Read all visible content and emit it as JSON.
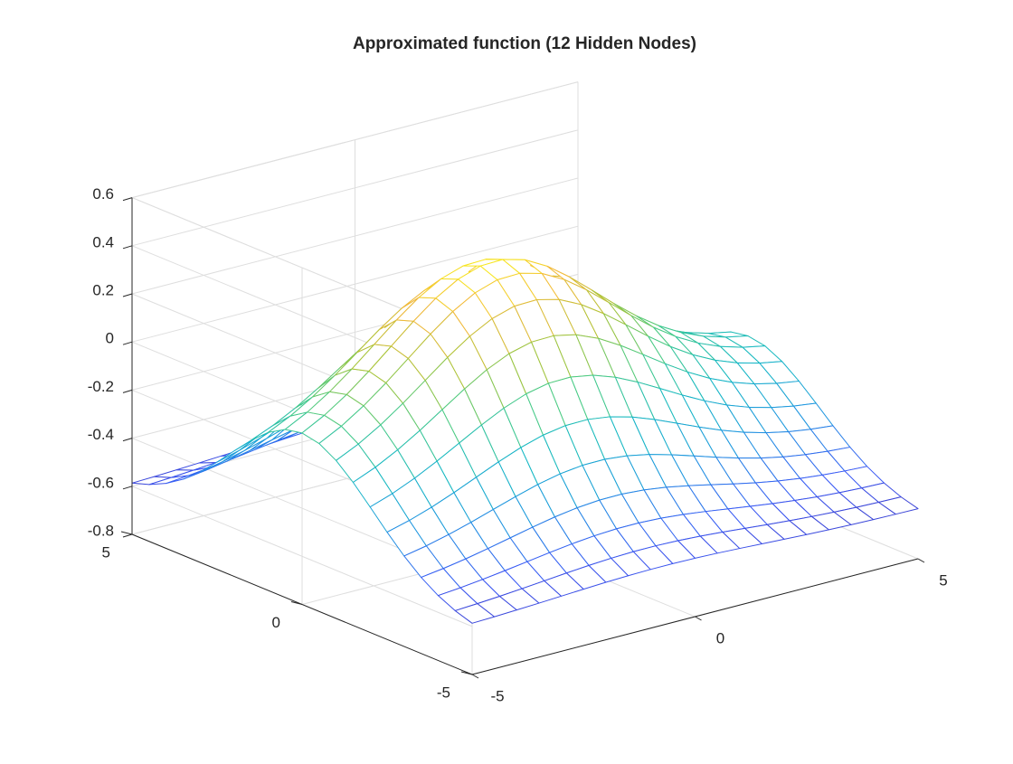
{
  "chart_data": {
    "type": "surface",
    "title": "Approximated function (12 Hidden Nodes)",
    "xlabel": "",
    "ylabel": "",
    "zlabel": "",
    "xlim": [
      -5,
      5
    ],
    "ylim": [
      -5,
      5
    ],
    "zlim": [
      -0.8,
      0.6
    ],
    "x_ticks": [
      -5,
      0,
      5
    ],
    "y_ticks": [
      -5,
      0,
      5
    ],
    "z_ticks": [
      -0.8,
      -0.6,
      -0.4,
      -0.2,
      0,
      0.2,
      0.4,
      0.6
    ],
    "x_tick_labels": [
      "-5",
      "0",
      "5"
    ],
    "y_tick_labels": [
      "-5",
      "0",
      "5"
    ],
    "z_tick_labels": [
      "-0.8",
      "-0.6",
      "-0.4",
      "-0.2",
      "0",
      "0.2",
      "0.4",
      "0.6"
    ],
    "grid": true,
    "colormap": "parula",
    "colormap_colors": [
      "#3e26a8",
      "#3a59f5",
      "#1f96e0",
      "#14b8c4",
      "#48cb86",
      "#a9c437",
      "#f2b83a",
      "#f9fb15"
    ],
    "mesh": {
      "x": [
        -5,
        -4.5,
        -4,
        -3.5,
        -3,
        -2.5,
        -2,
        -1.5,
        -1,
        -0.5,
        0,
        0.5,
        1,
        1.5,
        2,
        2.5,
        3,
        3.5,
        4,
        4.5,
        5
      ],
      "y": [
        -5,
        -4.5,
        -4,
        -3.5,
        -3,
        -2.5,
        -2,
        -1.5,
        -1,
        -0.5,
        0,
        0.5,
        1,
        1.5,
        2,
        2.5,
        3,
        3.5,
        4,
        4.5,
        5
      ],
      "model": "z = 0.42*exp(-((x+0.7)^2)/10.5)*exp(-(y^2)/9) - 0.55*exp(-(y^2)/9)*(1-exp(-((x+0.7)^2)/10.5))*0.35 - 0.62*(1-exp(-(y^2)/9))"
    },
    "mesh_color": "edge-interpolated",
    "face_color": "white",
    "view": {
      "azimuth": -37.5,
      "elevation": 30
    }
  }
}
